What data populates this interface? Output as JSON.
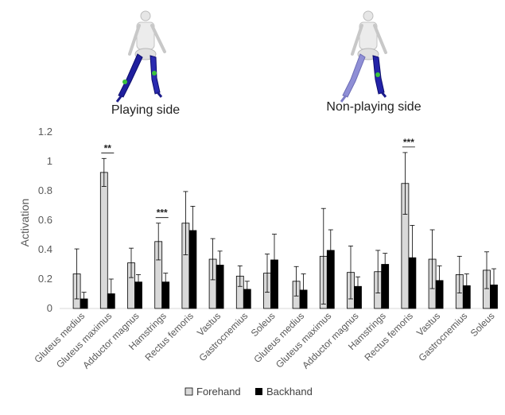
{
  "chart_data": {
    "type": "bar",
    "ylabel": "Activation",
    "ylim": [
      0,
      1.2
    ],
    "yticks": [
      "0",
      "0.2",
      "0.4",
      "0.6",
      "0.8",
      "1",
      "1.2"
    ],
    "grid": false,
    "legend_position": "bottom",
    "categories": [
      "Gluteus medius",
      "Gluteus maximus",
      "Adductor magnus",
      "Hamstrings",
      "Rectus femoris",
      "Vastus",
      "Gastrocnemius",
      "Soleus"
    ],
    "series_style": {
      "Forehand": "#d9d9d9",
      "Backhand": "#000000"
    },
    "panels": [
      {
        "label": "Playing side",
        "series": [
          {
            "name": "Forehand",
            "values": [
              0.235,
              0.925,
              0.31,
              0.455,
              0.58,
              0.335,
              0.22,
              0.24
            ],
            "error": [
              0.17,
              0.095,
              0.1,
              0.125,
              0.215,
              0.14,
              0.07,
              0.13
            ]
          },
          {
            "name": "Backhand",
            "values": [
              0.065,
              0.1,
              0.18,
              0.18,
              0.53,
              0.295,
              0.13,
              0.33
            ],
            "error": [
              0.045,
              0.1,
              0.05,
              0.06,
              0.165,
              0.095,
              0.055,
              0.175
            ]
          }
        ],
        "significance": [
          {
            "category": 1,
            "label": "**"
          },
          {
            "category": 3,
            "label": "***"
          }
        ]
      },
      {
        "label": "Non-playing side",
        "series": [
          {
            "name": "Forehand",
            "values": [
              0.185,
              0.355,
              0.245,
              0.25,
              0.85,
              0.335,
              0.23,
              0.26
            ],
            "error": [
              0.1,
              0.325,
              0.18,
              0.145,
              0.21,
              0.2,
              0.125,
              0.125
            ]
          },
          {
            "name": "Backhand",
            "values": [
              0.125,
              0.395,
              0.15,
              0.3,
              0.345,
              0.19,
              0.155,
              0.16
            ],
            "error": [
              0.11,
              0.14,
              0.065,
              0.075,
              0.22,
              0.1,
              0.08,
              0.11
            ]
          }
        ],
        "significance": [
          {
            "category": 4,
            "label": "***"
          }
        ]
      }
    ]
  }
}
